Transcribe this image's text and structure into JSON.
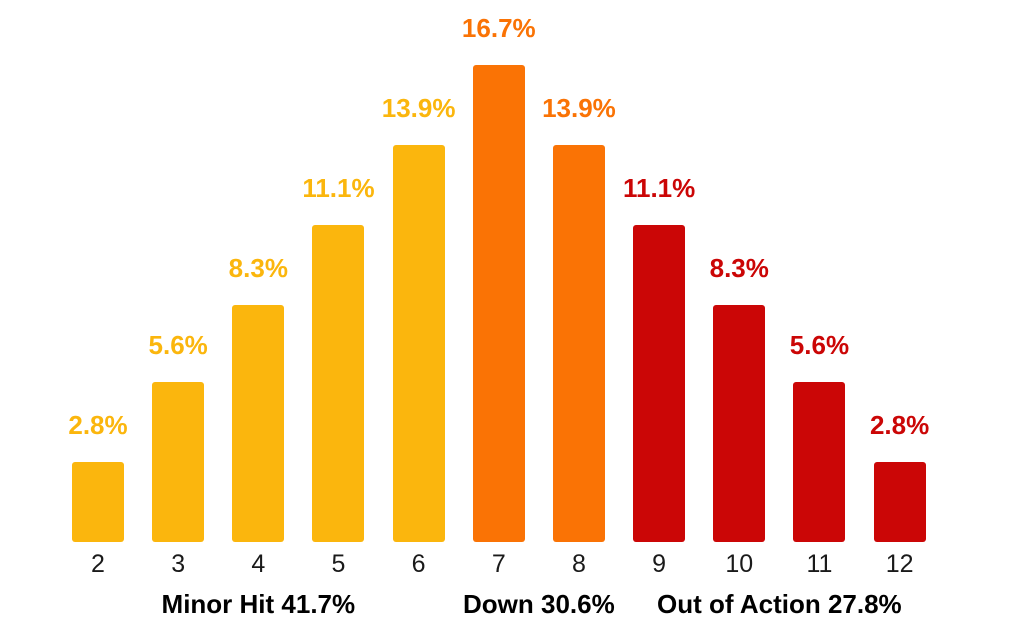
{
  "chart_data": {
    "type": "bar",
    "title": "",
    "xlabel": "",
    "ylabel": "",
    "categories": [
      "2",
      "3",
      "4",
      "5",
      "6",
      "7",
      "8",
      "9",
      "10",
      "11",
      "12"
    ],
    "values": [
      2.8,
      5.6,
      8.3,
      11.1,
      13.9,
      16.7,
      13.9,
      11.1,
      8.3,
      5.6,
      2.8
    ],
    "value_labels": [
      "2.8%",
      "5.6%",
      "8.3%",
      "11.1%",
      "13.9%",
      "16.7%",
      "13.9%",
      "11.1%",
      "8.3%",
      "5.6%",
      "2.8%"
    ],
    "bar_colors": [
      "#FBB60D",
      "#FBB60D",
      "#FBB60D",
      "#FBB60D",
      "#FBB60D",
      "#FA7305",
      "#FA7305",
      "#CB0606",
      "#CB0606",
      "#CB0606",
      "#CB0606"
    ],
    "color_key": {
      "yellow": "#FBB60D",
      "orange": "#FA7305",
      "red": "#CB0606"
    },
    "groups": [
      {
        "label": "Minor Hit 41.7%",
        "from_index": 0,
        "to_index": 4,
        "start_category": "2",
        "end_category": "6"
      },
      {
        "label": "Down 30.6%",
        "from_index": 5,
        "to_index": 6,
        "start_category": "7",
        "end_category": "8"
      },
      {
        "label": "Out of Action 27.8%",
        "from_index": 7,
        "to_index": 10,
        "start_category": "9",
        "end_category": "12"
      }
    ],
    "ylim": [
      0,
      17.5
    ],
    "grid": false,
    "legend": false,
    "value_labels_match_bar_color": true,
    "axis_label_color": "#1a1a1a",
    "group_label_color": "#000000"
  }
}
